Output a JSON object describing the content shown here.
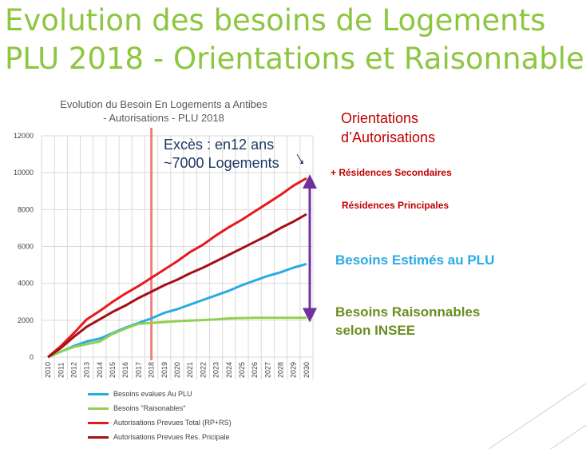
{
  "slide": {
    "title_line1": "Evolution des besoins de Logements",
    "title_line2": "PLU 2018 - Orientations et Raisonnables",
    "title_color": "#8dc63f"
  },
  "annotations": {
    "excess_line1": "Excès : en12 ans",
    "excess_line2": "~7000 Logements",
    "orientations_line1": "Orientations",
    "orientations_line2": "d’Autorisations",
    "residences_secondaires": "+ Résidences Secondaires",
    "residences_principales": "Résidences Principales",
    "besoins_plu": "Besoins Estimés au PLU",
    "besoins_raisonnables_line1": "Besoins Raisonnables",
    "besoins_raisonnables_line2": "selon INSEE"
  },
  "chart_data": {
    "type": "line",
    "title_line1": "Evolution du Besoin En Logements a Antibes",
    "title_line2": "- Autorisations - PLU 2018",
    "x": [
      2010,
      2011,
      2012,
      2013,
      2014,
      2015,
      2016,
      2017,
      2018,
      2019,
      2020,
      2021,
      2022,
      2023,
      2024,
      2025,
      2026,
      2027,
      2028,
      2029,
      2030
    ],
    "ylim": [
      0,
      12000
    ],
    "yticks": [
      0,
      2000,
      4000,
      6000,
      8000,
      10000,
      12000
    ],
    "grid": true,
    "legend_position": "bottom",
    "series": [
      {
        "name": "Besoins evalues Au PLU",
        "color": "#29abe2",
        "values": [
          0,
          300,
          600,
          850,
          1000,
          1300,
          1600,
          1850,
          2100,
          2400,
          2600,
          2850,
          3100,
          3350,
          3600,
          3900,
          4150,
          4400,
          4600,
          4850,
          5050
        ]
      },
      {
        "name": "Besoins \"Raisonables\"",
        "color": "#92d050",
        "values": [
          0,
          300,
          550,
          700,
          850,
          1250,
          1550,
          1800,
          1850,
          1900,
          1950,
          1980,
          2010,
          2050,
          2100,
          2120,
          2130,
          2130,
          2130,
          2130,
          2130
        ]
      },
      {
        "name": "Autorisations Prevues  Total (RP+RS)",
        "color": "#e8191c",
        "values": [
          0,
          600,
          1300,
          2050,
          2500,
          3000,
          3450,
          3850,
          4300,
          4750,
          5200,
          5700,
          6100,
          6600,
          7050,
          7450,
          7900,
          8350,
          8800,
          9300,
          9700
        ]
      },
      {
        "name": "Autorisations Prevues Res. Pricipale",
        "color": "#a50f15",
        "values": [
          0,
          500,
          1100,
          1650,
          2050,
          2450,
          2800,
          3200,
          3550,
          3900,
          4200,
          4550,
          4850,
          5200,
          5550,
          5900,
          6250,
          6600,
          7000,
          7350,
          7750
        ]
      }
    ],
    "marker_year": 2018,
    "marker_color": "#f08080",
    "bracket": {
      "from": 2100,
      "to": 9700,
      "color": "#7030a0"
    }
  }
}
